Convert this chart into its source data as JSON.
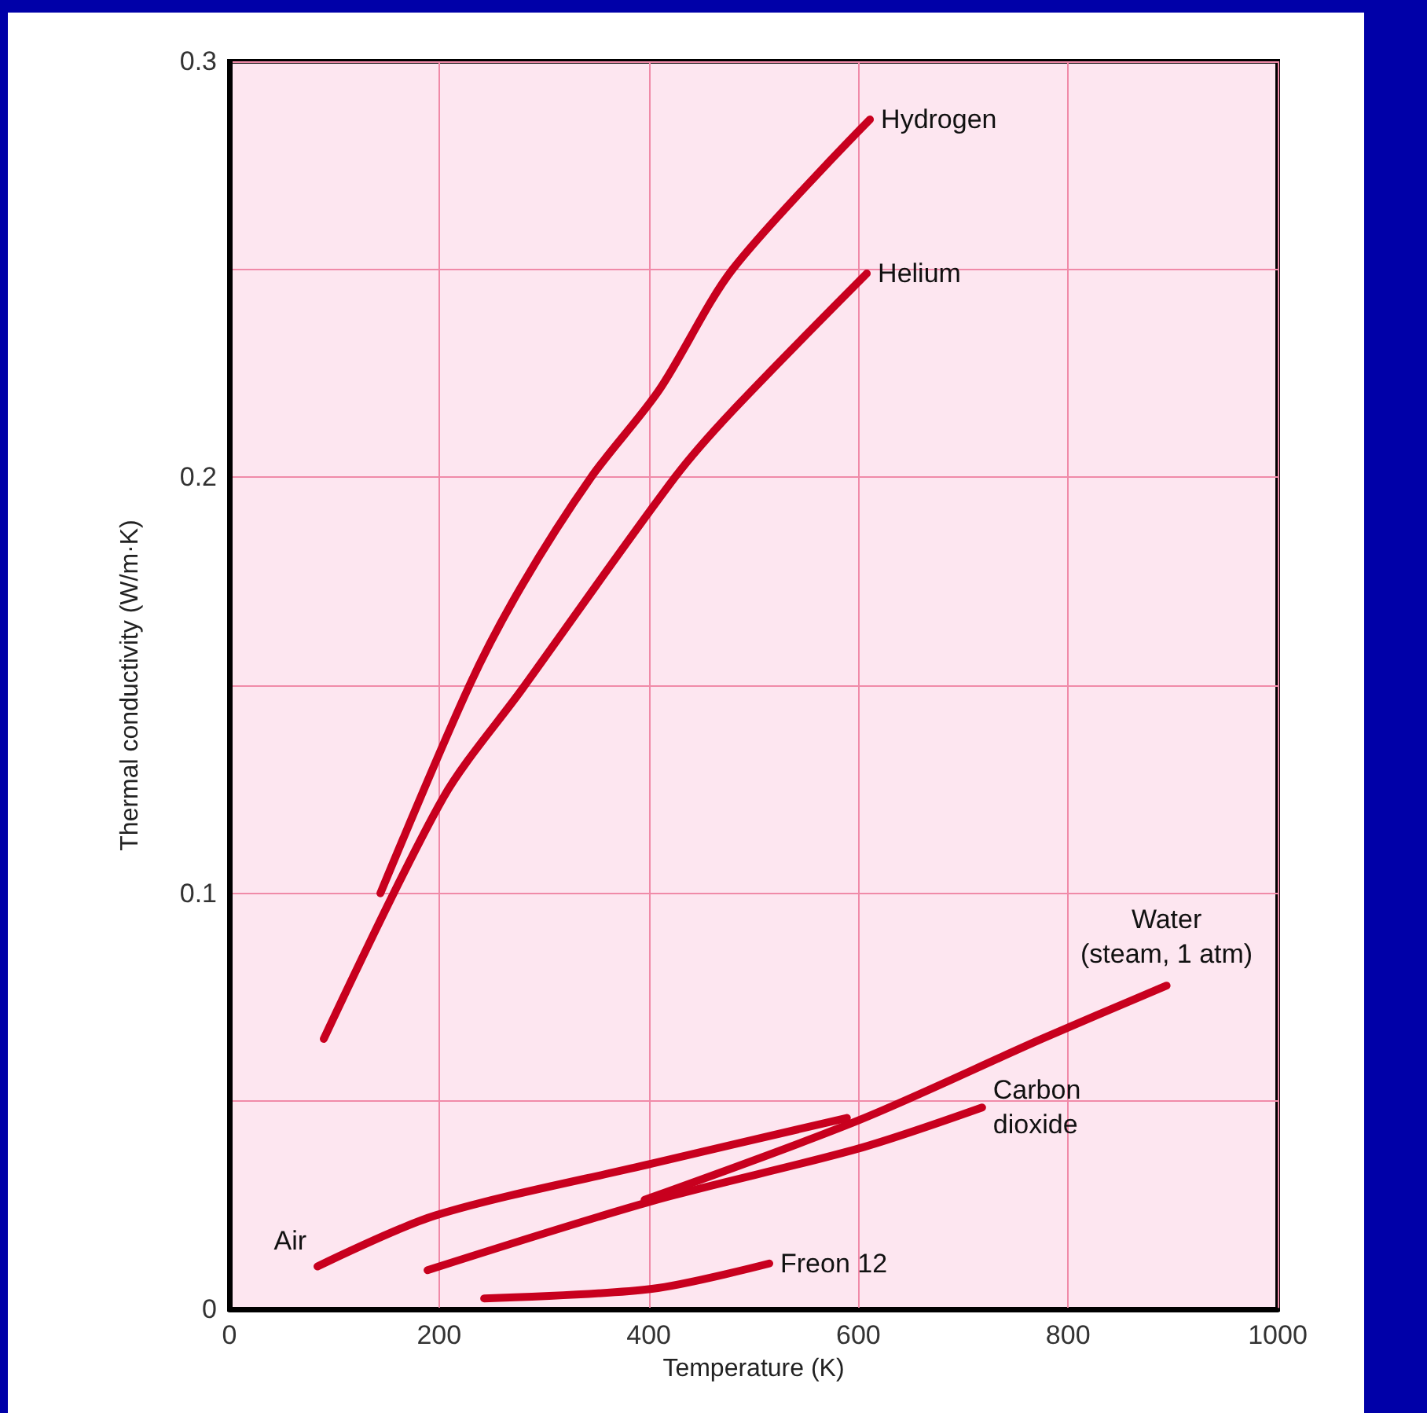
{
  "chart_data": {
    "type": "line",
    "xlabel": "Temperature (K)",
    "ylabel": "Thermal conductivity (W/m·K)",
    "xlim": [
      0,
      1000
    ],
    "xticks": [
      0,
      200,
      400,
      600,
      800,
      1000
    ],
    "ylim": [
      0,
      0.3
    ],
    "yticks": [
      0,
      {
        "value": 0.05,
        "label": null
      },
      0.1,
      {
        "value": 0.15,
        "label": null
      },
      0.2,
      {
        "value": 0.25,
        "label": null
      },
      0.3
    ],
    "grid": true,
    "legend": false,
    "marker": "none",
    "line_style": "solid",
    "series": [
      {
        "name": "Hydrogen",
        "color": "#c8001e",
        "x": [
          144,
          229,
          279,
          345,
          410,
          480,
          611
        ],
        "values": [
          0.1,
          0.15,
          0.174,
          0.2,
          0.221,
          0.25,
          0.286
        ]
      },
      {
        "name": "Helium",
        "color": "#c8001e",
        "x": [
          90,
          204,
          279,
          425,
          480,
          608
        ],
        "values": [
          0.065,
          0.123,
          0.149,
          0.2,
          0.216,
          0.249
        ]
      },
      {
        "name": "Water\n(steam, 1 atm)",
        "color": "#c8001e",
        "x": [
          396,
          601,
          775,
          894
        ],
        "values": [
          0.0263,
          0.0455,
          0.065,
          0.0778
        ]
      },
      {
        "name": "Carbon\ndioxide",
        "color": "#c8001e",
        "x": [
          189,
          403,
          601,
          718
        ],
        "values": [
          0.0094,
          0.026,
          0.0387,
          0.0485
        ]
      },
      {
        "name": "Air",
        "color": "#c8001e",
        "x": [
          84,
          197,
          403,
          589
        ],
        "values": [
          0.0103,
          0.0226,
          0.035,
          0.046
        ]
      },
      {
        "name": "Freon 12",
        "color": "#c8001e",
        "x": [
          243,
          403,
          515
        ],
        "values": [
          0.0026,
          0.0049,
          0.011
        ]
      }
    ]
  }
}
